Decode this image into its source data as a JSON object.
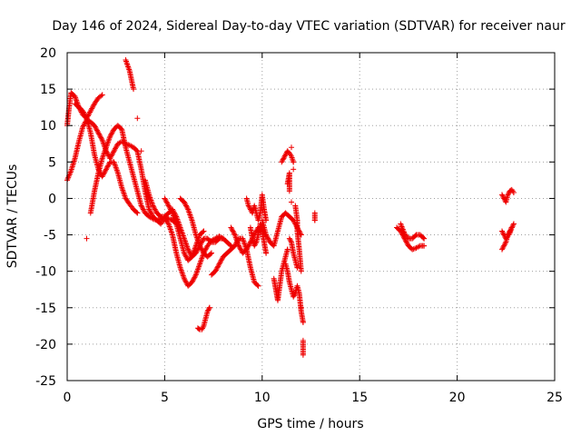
{
  "chart_data": {
    "type": "scatter",
    "title": "Day 146 of 2024, Sidereal Day-to-day VTEC variation (SDTVAR) for receiver naur",
    "xlabel": "GPS time / hours",
    "ylabel": "SDTVAR / TECUs",
    "xlim": [
      0,
      25
    ],
    "ylim": [
      -25,
      20
    ],
    "xticks": [
      0,
      5,
      10,
      15,
      20,
      25
    ],
    "yticks": [
      -25,
      -20,
      -15,
      -10,
      -5,
      0,
      5,
      10,
      15,
      20
    ],
    "grid": true,
    "marker": "+",
    "color": "#ee0000",
    "series": [
      {
        "name": "trace-1",
        "x": [
          0.0,
          0.2,
          0.4,
          0.6,
          0.8,
          1.0,
          1.2,
          1.4,
          1.6,
          1.8,
          2.0,
          2.2,
          2.4,
          2.6,
          2.8,
          3.0,
          3.2,
          3.4,
          3.6,
          3.8,
          4.0,
          4.2,
          4.4,
          4.6,
          4.8,
          5.0,
          5.2,
          5.4,
          5.6,
          5.8,
          6.0,
          6.2,
          6.4,
          6.6,
          6.8,
          7.0,
          7.2,
          7.4,
          7.6,
          7.8,
          8.0
        ],
        "y": [
          2.5,
          3.8,
          5.5,
          7.8,
          9.8,
          10.8,
          10.5,
          10.0,
          9.0,
          8.0,
          6.5,
          5.5,
          6.5,
          7.5,
          7.8,
          7.5,
          7.3,
          7.0,
          6.5,
          4.0,
          1.0,
          -1.5,
          -2.5,
          -3.0,
          -3.5,
          -2.8,
          -3.5,
          -5.0,
          -7.5,
          -9.5,
          -11.0,
          -12.0,
          -11.5,
          -10.5,
          -9.0,
          -7.5,
          -6.5,
          -5.8,
          -5.5,
          -5.2,
          -5.5
        ]
      },
      {
        "name": "trace-2",
        "x": [
          0.0,
          0.1,
          0.2,
          0.4,
          0.6,
          0.8,
          1.0,
          1.2,
          1.4,
          1.6,
          1.8
        ],
        "y": [
          10.0,
          12.5,
          14.5,
          14.0,
          12.5,
          11.5,
          11.0,
          12.0,
          13.0,
          13.8,
          14.2
        ]
      },
      {
        "name": "trace-3",
        "x": [
          0.4,
          0.6,
          0.8,
          1.0,
          1.2,
          1.4,
          1.6,
          1.8,
          2.0,
          2.2,
          2.4,
          2.6,
          2.8,
          3.0,
          3.2,
          3.4,
          3.6
        ],
        "y": [
          13.0,
          12.5,
          12.0,
          11.0,
          9.0,
          6.0,
          4.0,
          3.0,
          4.0,
          5.0,
          5.0,
          3.5,
          1.5,
          0.0,
          -0.8,
          -1.5,
          -2.0
        ]
      },
      {
        "name": "trace-4",
        "x": [
          1.0,
          1.2,
          1.4,
          1.6,
          1.8,
          2.0,
          2.2,
          2.4,
          2.6,
          2.8,
          3.0,
          3.2,
          3.4,
          3.6,
          3.8,
          4.0,
          4.2,
          4.4,
          4.6,
          4.8,
          5.0,
          5.2,
          5.4,
          5.6
        ],
        "y": [
          -5.5,
          -2.0,
          1.0,
          3.5,
          5.5,
          7.0,
          8.5,
          9.5,
          10.0,
          9.5,
          7.0,
          5.0,
          3.0,
          1.0,
          -1.0,
          -2.0,
          -2.5,
          -2.8,
          -3.0,
          -2.8,
          -2.5,
          -2.8,
          -3.0,
          -3.5
        ]
      },
      {
        "name": "trace-5",
        "x": [
          3.0,
          3.2,
          3.4,
          3.6,
          3.8,
          4.0,
          4.2,
          4.4,
          4.6,
          4.8,
          5.0,
          5.2,
          5.4,
          5.6,
          5.8,
          6.0,
          6.2,
          6.4,
          6.6,
          6.8,
          7.0,
          7.2,
          7.4,
          7.6,
          7.8,
          8.0,
          8.2,
          8.4
        ],
        "y": [
          19.0,
          17.5,
          15.0,
          11.0,
          6.5,
          2.5,
          0.5,
          -1.0,
          -2.0,
          -2.5,
          -2.5,
          -2.0,
          -1.5,
          -2.5,
          -4.0,
          -5.5,
          -7.0,
          -8.0,
          -7.5,
          -6.5,
          -5.5,
          -5.5,
          -6.0,
          -6.0,
          -5.5,
          -5.5,
          -6.0,
          -6.5
        ]
      },
      {
        "name": "trace-6",
        "x": [
          5.0,
          5.2,
          5.4,
          5.6,
          5.8,
          6.0,
          6.2,
          6.4,
          6.6,
          6.8,
          7.0
        ],
        "y": [
          0.0,
          -1.0,
          -2.0,
          -3.5,
          -5.5,
          -7.5,
          -8.5,
          -8.0,
          -6.5,
          -5.0,
          -4.5
        ]
      },
      {
        "name": "trace-7",
        "x": [
          5.8,
          6.0,
          6.2,
          6.4,
          6.6,
          6.8,
          7.0,
          7.2,
          7.4
        ],
        "y": [
          0.0,
          -0.5,
          -1.5,
          -3.0,
          -5.0,
          -6.5,
          -7.5,
          -8.0,
          -7.5
        ]
      },
      {
        "name": "trace-8",
        "x": [
          6.7,
          6.8,
          6.9,
          7.0,
          7.1,
          7.2,
          7.3
        ],
        "y": [
          -17.8,
          -18.0,
          -18.0,
          -17.5,
          -16.5,
          -15.5,
          -15.0
        ]
      },
      {
        "name": "trace-9",
        "x": [
          7.4,
          7.6,
          7.8,
          8.0,
          8.2,
          8.4,
          8.6,
          8.8,
          9.0,
          9.2,
          9.4,
          9.6,
          9.8
        ],
        "y": [
          -10.5,
          -10.0,
          -9.0,
          -8.0,
          -7.5,
          -7.0,
          -6.5,
          -5.5,
          -5.5,
          -7.0,
          -9.5,
          -11.5,
          -12.0
        ]
      },
      {
        "name": "trace-10",
        "x": [
          8.4,
          8.6,
          8.8,
          9.0,
          9.2,
          9.4,
          9.6,
          9.8
        ],
        "y": [
          -4.0,
          -5.0,
          -6.5,
          -7.5,
          -7.0,
          -6.0,
          -5.0,
          -4.0
        ]
      },
      {
        "name": "trace-11",
        "x": [
          9.4,
          9.5,
          9.6,
          9.7,
          9.8,
          9.9,
          10.0,
          10.1,
          10.2
        ],
        "y": [
          -4.0,
          -5.5,
          -6.5,
          -6.0,
          -5.0,
          -3.5,
          -4.5,
          -6.0,
          -7.5
        ]
      },
      {
        "name": "trace-12",
        "x": [
          9.2,
          9.3,
          9.4,
          9.5,
          9.6,
          9.7,
          9.8,
          9.9,
          10.0,
          10.1,
          10.2
        ],
        "y": [
          0.0,
          -1.0,
          -1.5,
          -2.0,
          -1.0,
          -2.0,
          -3.0,
          -2.0,
          0.5,
          -1.5,
          -3.0
        ]
      },
      {
        "name": "trace-13",
        "x": [
          10.0,
          10.2,
          10.4,
          10.6,
          10.8,
          11.0,
          11.2,
          11.4,
          11.6,
          11.8,
          12.0
        ],
        "y": [
          -3.0,
          -5.0,
          -6.0,
          -6.5,
          -4.5,
          -2.5,
          -2.0,
          -2.5,
          -3.0,
          -4.0,
          -5.0
        ]
      },
      {
        "name": "trace-14",
        "x": [
          10.6,
          10.7,
          10.8,
          10.9,
          11.0,
          11.1,
          11.2,
          11.3
        ],
        "y": [
          -11.0,
          -12.5,
          -14.0,
          -12.0,
          -10.0,
          -9.0,
          -8.0,
          -7.0
        ]
      },
      {
        "name": "trace-15",
        "x": [
          11.0,
          11.1,
          11.2,
          11.3,
          11.4,
          11.5,
          11.6
        ],
        "y": [
          5.0,
          5.5,
          6.0,
          6.5,
          6.2,
          5.8,
          5.0
        ]
      },
      {
        "name": "trace-16",
        "x": [
          11.2,
          11.3,
          11.4,
          11.5,
          11.6,
          11.7,
          11.8,
          11.9,
          12.0,
          12.1
        ],
        "y": [
          -9.0,
          -10.0,
          -11.5,
          -12.5,
          -13.5,
          -13.0,
          -12.0,
          -13.0,
          -15.5,
          -17.0
        ]
      },
      {
        "name": "trace-17",
        "x": [
          11.4,
          11.5,
          11.6,
          11.7,
          11.8
        ],
        "y": [
          -5.5,
          -6.0,
          -7.5,
          -8.5,
          -9.5
        ]
      },
      {
        "name": "trace-18",
        "x": [
          11.3,
          11.4,
          11.4,
          11.5,
          11.5,
          11.6,
          11.7,
          11.8,
          11.8,
          11.9,
          12.0,
          12.0,
          12.1,
          12.1,
          12.7,
          12.7
        ],
        "y": [
          2.0,
          3.5,
          1.0,
          7.0,
          -0.5,
          4.0,
          -1.0,
          -3.0,
          -4.5,
          -7.0,
          -10.0,
          -15.0,
          -19.5,
          -21.5,
          -2.0,
          -3.0
        ]
      },
      {
        "name": "trace-19",
        "x": [
          16.9,
          17.1,
          17.3,
          17.5,
          17.7,
          17.9,
          18.1,
          18.3
        ],
        "y": [
          -4.0,
          -4.5,
          -5.5,
          -6.5,
          -7.0,
          -6.8,
          -6.5,
          -6.5
        ]
      },
      {
        "name": "trace-20",
        "x": [
          17.1,
          17.3,
          17.5,
          17.7,
          17.9,
          18.1,
          18.3
        ],
        "y": [
          -3.5,
          -4.8,
          -5.5,
          -5.5,
          -5.0,
          -5.0,
          -5.5
        ]
      },
      {
        "name": "trace-21",
        "x": [
          22.3,
          22.4,
          22.5,
          22.6,
          22.7,
          22.8,
          22.9
        ],
        "y": [
          -7.0,
          -6.5,
          -6.0,
          -5.0,
          -4.5,
          -4.0,
          -3.5
        ]
      },
      {
        "name": "trace-22",
        "x": [
          22.3,
          22.4,
          22.5,
          22.6,
          22.7,
          22.8
        ],
        "y": [
          -4.5,
          -5.0,
          -5.5,
          -5.2,
          -4.8,
          -4.0
        ]
      },
      {
        "name": "trace-23",
        "x": [
          22.3,
          22.4,
          22.5,
          22.6,
          22.7,
          22.8,
          22.9
        ],
        "y": [
          0.5,
          0.0,
          -0.5,
          0.5,
          1.0,
          1.2,
          0.8
        ]
      }
    ]
  }
}
